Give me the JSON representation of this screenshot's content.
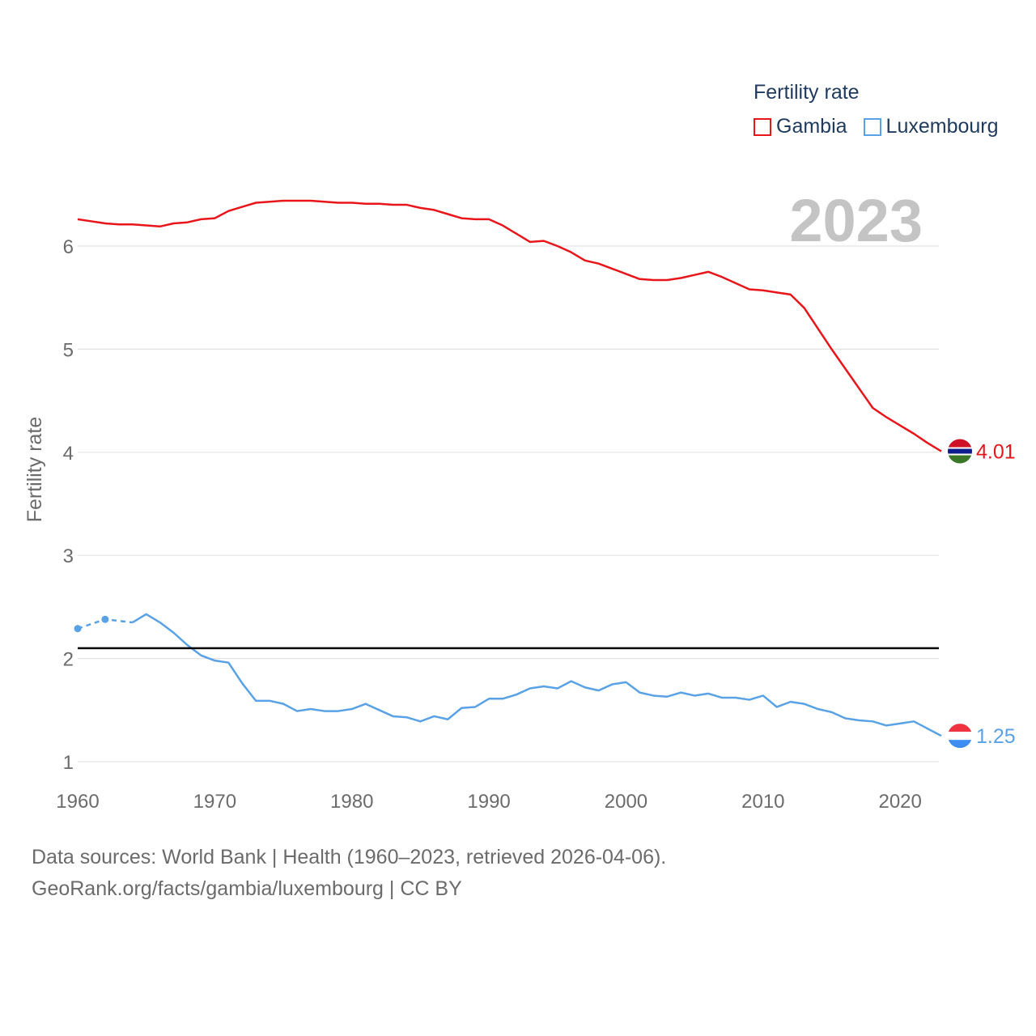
{
  "legend": {
    "title": "Fertility rate",
    "items": [
      {
        "label": "Gambia",
        "color": "#e8161b"
      },
      {
        "label": "Luxembourg",
        "color": "#5aa2e6"
      }
    ]
  },
  "year_watermark": "2023",
  "source": {
    "line1": "Data sources: World Bank | Health (1960–2023, retrieved 2026-04-06).",
    "line2": "GeoRank.org/facts/gambia/luxembourg | CC BY"
  },
  "chart_data": {
    "type": "line",
    "title": "Fertility rate",
    "xlabel": "",
    "ylabel": "Fertility rate",
    "xlim": [
      1960,
      2023
    ],
    "ylim": [
      1,
      6.6
    ],
    "xticks": [
      1960,
      1970,
      1980,
      1990,
      2000,
      2010,
      2020
    ],
    "yticks": [
      1,
      2,
      3,
      4,
      5,
      6
    ],
    "reference_line": {
      "value": 2.1,
      "color": "#000000"
    },
    "series": [
      {
        "name": "Gambia",
        "color": "#e8161b",
        "end_label": "4.01",
        "x": [
          1960,
          1961,
          1962,
          1963,
          1964,
          1965,
          1966,
          1967,
          1968,
          1969,
          1970,
          1971,
          1972,
          1973,
          1974,
          1975,
          1976,
          1977,
          1978,
          1979,
          1980,
          1981,
          1982,
          1983,
          1984,
          1985,
          1986,
          1987,
          1988,
          1989,
          1990,
          1991,
          1992,
          1993,
          1994,
          1995,
          1996,
          1997,
          1998,
          1999,
          2000,
          2001,
          2002,
          2003,
          2004,
          2005,
          2006,
          2007,
          2008,
          2009,
          2010,
          2011,
          2012,
          2013,
          2014,
          2015,
          2016,
          2017,
          2018,
          2019,
          2020,
          2021,
          2022,
          2023
        ],
        "values": [
          6.26,
          6.24,
          6.22,
          6.21,
          6.21,
          6.2,
          6.19,
          6.22,
          6.23,
          6.26,
          6.27,
          6.34,
          6.38,
          6.42,
          6.43,
          6.44,
          6.44,
          6.44,
          6.43,
          6.42,
          6.42,
          6.41,
          6.41,
          6.4,
          6.4,
          6.37,
          6.35,
          6.31,
          6.27,
          6.26,
          6.26,
          6.2,
          6.12,
          6.04,
          6.05,
          6.0,
          5.94,
          5.86,
          5.83,
          5.78,
          5.73,
          5.68,
          5.67,
          5.67,
          5.69,
          5.72,
          5.75,
          5.7,
          5.64,
          5.58,
          5.57,
          5.55,
          5.53,
          5.4,
          5.2,
          5.0,
          4.81,
          4.62,
          4.43,
          4.34,
          4.26,
          4.18,
          4.09,
          4.01
        ]
      },
      {
        "name": "Luxembourg",
        "color": "#5aa2e6",
        "end_label": "1.25",
        "estimated_points": [
          {
            "x": 1960,
            "y": 2.29
          },
          {
            "x": 1962,
            "y": 2.38
          },
          {
            "x": 1964,
            "y": 2.35
          }
        ],
        "x": [
          1964,
          1965,
          1966,
          1967,
          1968,
          1969,
          1970,
          1971,
          1972,
          1973,
          1974,
          1975,
          1976,
          1977,
          1978,
          1979,
          1980,
          1981,
          1982,
          1983,
          1984,
          1985,
          1986,
          1987,
          1988,
          1989,
          1990,
          1991,
          1992,
          1993,
          1994,
          1995,
          1996,
          1997,
          1998,
          1999,
          2000,
          2001,
          2002,
          2003,
          2004,
          2005,
          2006,
          2007,
          2008,
          2009,
          2010,
          2011,
          2012,
          2013,
          2014,
          2015,
          2016,
          2017,
          2018,
          2019,
          2020,
          2021,
          2022,
          2023
        ],
        "values": [
          2.35,
          2.43,
          2.35,
          2.25,
          2.13,
          2.03,
          1.98,
          1.96,
          1.76,
          1.59,
          1.59,
          1.56,
          1.49,
          1.51,
          1.49,
          1.49,
          1.51,
          1.56,
          1.5,
          1.44,
          1.43,
          1.39,
          1.44,
          1.41,
          1.52,
          1.53,
          1.61,
          1.61,
          1.65,
          1.71,
          1.73,
          1.71,
          1.78,
          1.72,
          1.69,
          1.75,
          1.77,
          1.67,
          1.64,
          1.63,
          1.67,
          1.64,
          1.66,
          1.62,
          1.62,
          1.6,
          1.64,
          1.53,
          1.58,
          1.56,
          1.51,
          1.48,
          1.42,
          1.4,
          1.39,
          1.35,
          1.37,
          1.39,
          1.32,
          1.25
        ]
      }
    ]
  }
}
